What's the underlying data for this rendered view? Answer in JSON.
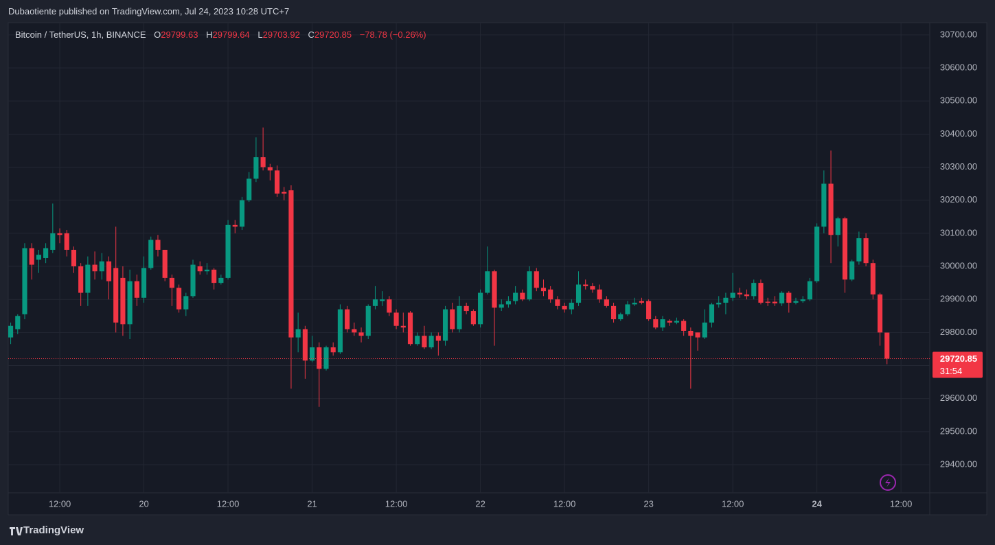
{
  "header": "Dubaotiente published on TradingView.com, Jul 24, 2023 10:28 UTC+7",
  "footer": "TradingView",
  "chart_data": {
    "type": "candlestick",
    "symbol": "Bitcoin / TetherUS, 1h, BINANCE",
    "legend_labels": {
      "open": "O",
      "high": "H",
      "low": "L",
      "close": "C"
    },
    "legend_values": {
      "open": 29799.63,
      "high": 29799.64,
      "low": 29703.92,
      "close": 29720.85
    },
    "change_label": "−78.78 (−0.26%)",
    "last_price": 29720.85,
    "countdown": "31:54",
    "up_color": "#089981",
    "down_color": "#f23645",
    "grid": true,
    "x": [
      5,
      6,
      7,
      8,
      9,
      10,
      11,
      12,
      13,
      14,
      15,
      16,
      17,
      18,
      19,
      20,
      21,
      22,
      23,
      24,
      25,
      26,
      27,
      28,
      29,
      30,
      31,
      32,
      33,
      34,
      35,
      36,
      37,
      38,
      39,
      40,
      41,
      42,
      43,
      44,
      45,
      46,
      47,
      48,
      49,
      50,
      51,
      52,
      53,
      54,
      55,
      56,
      57,
      58,
      59,
      60,
      61,
      62,
      63,
      64,
      65,
      66,
      67,
      68,
      69,
      70,
      71,
      72,
      73,
      74,
      75,
      76,
      77,
      78,
      79,
      80,
      81,
      82,
      83,
      84,
      85,
      86,
      87,
      88,
      89,
      90,
      91,
      92,
      93,
      94,
      95,
      96,
      97,
      98,
      99,
      100,
      101,
      102,
      103,
      104,
      105,
      106,
      107,
      108,
      109,
      110,
      111,
      112,
      113,
      114,
      115,
      116,
      117,
      118,
      119,
      120,
      121,
      122,
      123,
      124,
      125,
      126,
      127,
      128,
      129,
      130
    ],
    "open": [
      29785,
      29810,
      29855,
      30055,
      30020,
      30025,
      30050,
      30100,
      30100,
      30050,
      30000,
      29920,
      30005,
      29985,
      30015,
      29995,
      29965,
      29825,
      29955,
      29905,
      29995,
      30080,
      30050,
      29965,
      29935,
      29870,
      29910,
      30000,
      29985,
      29990,
      29950,
      29965,
      30125,
      30120,
      30200,
      30265,
      30330,
      30300,
      30290,
      30225,
      30230,
      29785,
      29810,
      29715,
      29755,
      29690,
      29755,
      29740,
      29870,
      29810,
      29800,
      29790,
      29880,
      29895,
      29900,
      29860,
      29820,
      29860,
      29765,
      29790,
      29755,
      29790,
      29775,
      29870,
      29810,
      29880,
      29865,
      29825,
      29920,
      29985,
      29875,
      29885,
      29895,
      29920,
      29900,
      29985,
      29935,
      29930,
      29900,
      29880,
      29870,
      29890,
      29945,
      29940,
      29930,
      29900,
      29880,
      29840,
      29855,
      29885,
      29895,
      29895,
      29840,
      29815,
      29835,
      29830,
      29835,
      29805,
      29800,
      29785,
      29830,
      29885,
      29890,
      29905,
      29920,
      29915,
      29910,
      29950,
      29893,
      29893,
      29888,
      29920,
      29890,
      29895,
      29900,
      29955,
      30120,
      30250,
      30095,
      30145,
      29960,
      30015,
      30085,
      30010,
      29915,
      29799.63
    ],
    "high": [
      29830,
      29855,
      30070,
      30070,
      30050,
      30070,
      30190,
      30115,
      30110,
      30060,
      30010,
      30030,
      30045,
      30040,
      30030,
      30120,
      30000,
      29990,
      29975,
      30030,
      30090,
      30095,
      30050,
      29975,
      29945,
      29920,
      30020,
      30015,
      30010,
      29995,
      29975,
      30140,
      30140,
      30210,
      30285,
      30390,
      30420,
      30310,
      30305,
      30240,
      30245,
      29860,
      29820,
      29790,
      29770,
      29760,
      29770,
      29885,
      29880,
      29830,
      29815,
      29885,
      29940,
      29925,
      29910,
      29870,
      29860,
      29865,
      29800,
      29820,
      29800,
      29800,
      29880,
      29890,
      29910,
      29890,
      29870,
      29930,
      30060,
      29990,
      29900,
      29910,
      29940,
      29930,
      30000,
      29995,
      29960,
      29940,
      29910,
      29890,
      29900,
      29985,
      29960,
      29950,
      29945,
      29910,
      29890,
      29860,
      29895,
      29905,
      29905,
      29900,
      29850,
      29850,
      29840,
      29845,
      29840,
      29815,
      29800,
      29870,
      29890,
      29910,
      29920,
      29980,
      29935,
      29930,
      29960,
      29960,
      29905,
      29910,
      29925,
      29925,
      29905,
      29910,
      29965,
      30130,
      30290,
      30350,
      30150,
      30150,
      30020,
      30105,
      30100,
      30020,
      29920,
      29799.64
    ],
    "low": [
      29765,
      29795,
      29840,
      29960,
      29980,
      30010,
      30040,
      30070,
      30030,
      29980,
      29880,
      29880,
      29960,
      29960,
      29900,
      29800,
      29790,
      29780,
      29880,
      29890,
      29990,
      30030,
      29955,
      29880,
      29860,
      29850,
      29905,
      29975,
      29975,
      29930,
      29945,
      29960,
      30100,
      30110,
      30195,
      30255,
      30290,
      30260,
      30210,
      30200,
      29630,
      29740,
      29660,
      29710,
      29575,
      29685,
      29730,
      29735,
      29800,
      29790,
      29770,
      29780,
      29870,
      29880,
      29850,
      29810,
      29800,
      29760,
      29760,
      29750,
      29750,
      29730,
      29760,
      29800,
      29800,
      29855,
      29820,
      29815,
      29915,
      29760,
      29865,
      29875,
      29885,
      29895,
      29895,
      29925,
      29910,
      29890,
      29870,
      29860,
      29855,
      29880,
      29930,
      29920,
      29890,
      29875,
      29830,
      29835,
      29850,
      29880,
      29885,
      29835,
      29810,
      29805,
      29820,
      29825,
      29790,
      29630,
      29745,
      29780,
      29815,
      29875,
      29855,
      29895,
      29905,
      29900,
      29900,
      29885,
      29880,
      29880,
      29880,
      29860,
      29885,
      29890,
      29895,
      29950,
      30100,
      30010,
      30060,
      29920,
      29955,
      30005,
      30000,
      29900,
      29760,
      29703.92
    ],
    "close": [
      29820,
      29850,
      30055,
      30005,
      30035,
      30055,
      30100,
      30095,
      30050,
      30000,
      29920,
      30005,
      29985,
      30015,
      29955,
      29830,
      29825,
      29955,
      29905,
      29995,
      30080,
      30050,
      29965,
      29935,
      29870,
      29910,
      30005,
      29985,
      29990,
      29950,
      29965,
      30125,
      30120,
      30200,
      30265,
      30330,
      30300,
      30290,
      30220,
      30220,
      29785,
      29810,
      29715,
      29755,
      29690,
      29755,
      29740,
      29870,
      29810,
      29800,
      29790,
      29880,
      29900,
      29900,
      29860,
      29820,
      29815,
      29765,
      29790,
      29755,
      29790,
      29775,
      29870,
      29810,
      29880,
      29865,
      29825,
      29920,
      29985,
      29875,
      29885,
      29895,
      29920,
      29900,
      29985,
      29935,
      29925,
      29900,
      29880,
      29870,
      29890,
      29945,
      29940,
      29930,
      29900,
      29880,
      29840,
      29855,
      29885,
      29890,
      29890,
      29840,
      29815,
      29840,
      29830,
      29835,
      29805,
      29790,
      29785,
      29830,
      29885,
      29890,
      29905,
      29920,
      29915,
      29910,
      29950,
      29890,
      29890,
      29888,
      29920,
      29890,
      29895,
      29900,
      29955,
      30120,
      30250,
      30095,
      30145,
      29960,
      30015,
      30085,
      30010,
      29915,
      29800,
      29720.85
    ],
    "xlim": [
      4.65,
      136.1
    ],
    "xticks": [
      {
        "value": 12,
        "label": "12:00"
      },
      {
        "value": 24,
        "label": "20"
      },
      {
        "value": 36,
        "label": "12:00"
      },
      {
        "value": 48,
        "label": "21"
      },
      {
        "value": 60,
        "label": "12:00"
      },
      {
        "value": 72,
        "label": "22"
      },
      {
        "value": 84,
        "label": "12:00"
      },
      {
        "value": 96,
        "label": "23"
      },
      {
        "value": 108,
        "label": "12:00"
      },
      {
        "value": 120,
        "label": "24"
      },
      {
        "value": 132,
        "label": "12:00"
      }
    ],
    "ylim": [
      29315,
      30737
    ],
    "yticks": [
      {
        "value": 29400,
        "label": "29400.00"
      },
      {
        "value": 29500,
        "label": "29500.00"
      },
      {
        "value": 29600,
        "label": "29600.00"
      },
      {
        "value": 29700,
        "label": "29700.00"
      },
      {
        "value": 29800,
        "label": "29800.00"
      },
      {
        "value": 29900,
        "label": "29900.00"
      },
      {
        "value": 30000,
        "label": "30000.00"
      },
      {
        "value": 30100,
        "label": "30100.00"
      },
      {
        "value": 30200,
        "label": "30200.00"
      },
      {
        "value": 30300,
        "label": "30300.00"
      },
      {
        "value": 30400,
        "label": "30400.00"
      },
      {
        "value": 30500,
        "label": "30500.00"
      },
      {
        "value": 30600,
        "label": "30600.00"
      },
      {
        "value": 30700,
        "label": "30700.00"
      }
    ]
  }
}
